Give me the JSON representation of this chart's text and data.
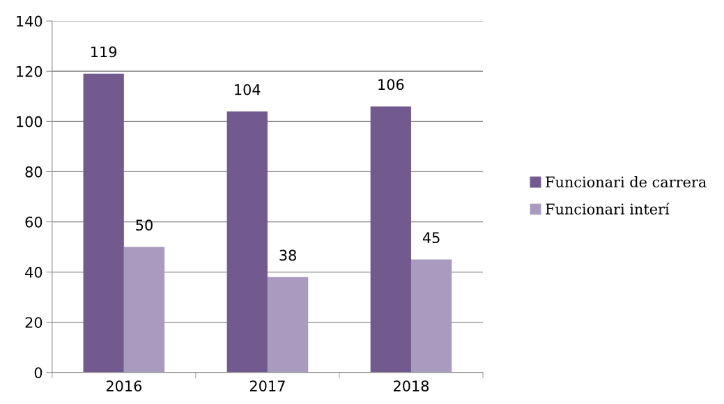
{
  "chart_data": {
    "type": "bar",
    "categories": [
      "2016",
      "2017",
      "2018"
    ],
    "series": [
      {
        "name": "Funcionari de carrera",
        "color": "#725a8f",
        "values": [
          119,
          104,
          106
        ]
      },
      {
        "name": "Funcionari interí",
        "color": "#a99bbf",
        "values": [
          50,
          38,
          45
        ]
      }
    ],
    "ylim": [
      0,
      140
    ],
    "yticks": [
      0,
      20,
      40,
      60,
      80,
      100,
      120,
      140
    ],
    "grid": "y",
    "legend": "right",
    "data_labels": true
  }
}
